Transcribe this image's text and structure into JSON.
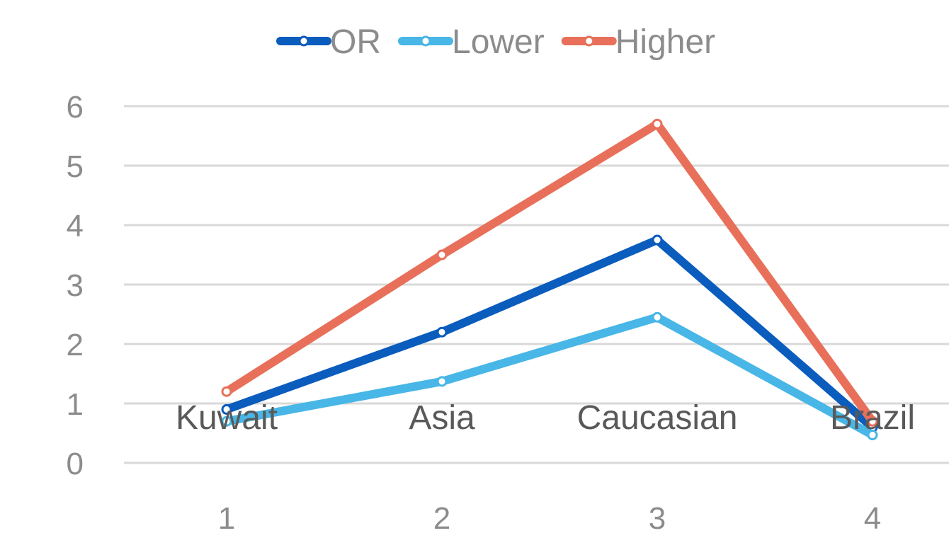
{
  "chart_data": {
    "type": "line",
    "x": [
      1,
      2,
      3,
      4
    ],
    "category_labels": [
      "Kuwait",
      "Asia",
      "Caucasian",
      "Brazil"
    ],
    "series": [
      {
        "name": "OR",
        "values": [
          0.9,
          2.2,
          3.75,
          0.6
        ],
        "color": "#0a5cbd"
      },
      {
        "name": "Lower",
        "values": [
          0.7,
          1.37,
          2.45,
          0.47
        ],
        "color": "#48b6e6"
      },
      {
        "name": "Higher",
        "values": [
          1.2,
          3.5,
          5.7,
          0.7
        ],
        "color": "#e8705a"
      }
    ],
    "ylim": [
      0,
      6
    ],
    "yticks": [
      0,
      1,
      2,
      3,
      4,
      5,
      6
    ],
    "xlim": [
      1,
      4
    ],
    "grid": true,
    "legend_position": "top-center"
  }
}
